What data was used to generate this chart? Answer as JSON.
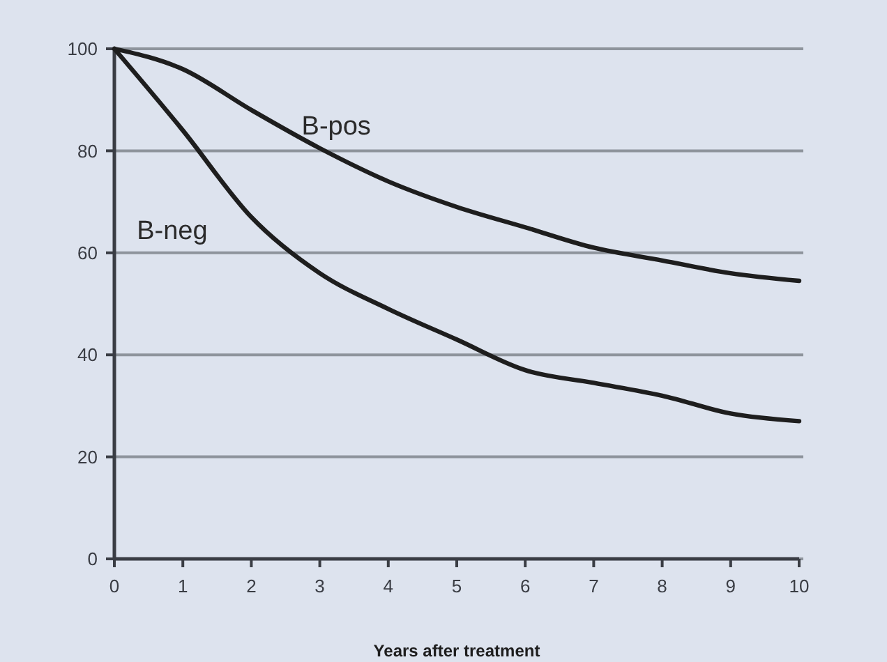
{
  "chart_data": {
    "type": "line",
    "xlabel": "Years after treatment",
    "x": [
      0,
      1,
      2,
      3,
      4,
      5,
      6,
      7,
      8,
      9,
      10
    ],
    "series": [
      {
        "name": "B-pos",
        "color": "#1e1e1e",
        "values": [
          100,
          96,
          88,
          80.5,
          74,
          69,
          65,
          61,
          58.5,
          56,
          54.5
        ]
      },
      {
        "name": "B-neg",
        "color": "#1e1e1e",
        "values": [
          100,
          84,
          67,
          56,
          49,
          43,
          37,
          34.5,
          32,
          28.5,
          27
        ]
      }
    ],
    "xlim": [
      0,
      10
    ],
    "xticks": [
      0,
      1,
      2,
      3,
      4,
      5,
      6,
      7,
      8,
      9,
      10
    ],
    "ylim": [
      0,
      100
    ],
    "yticks": [
      0,
      20,
      40,
      60,
      80,
      100
    ],
    "grid": "y",
    "marker": "none",
    "line_style": "solid"
  }
}
